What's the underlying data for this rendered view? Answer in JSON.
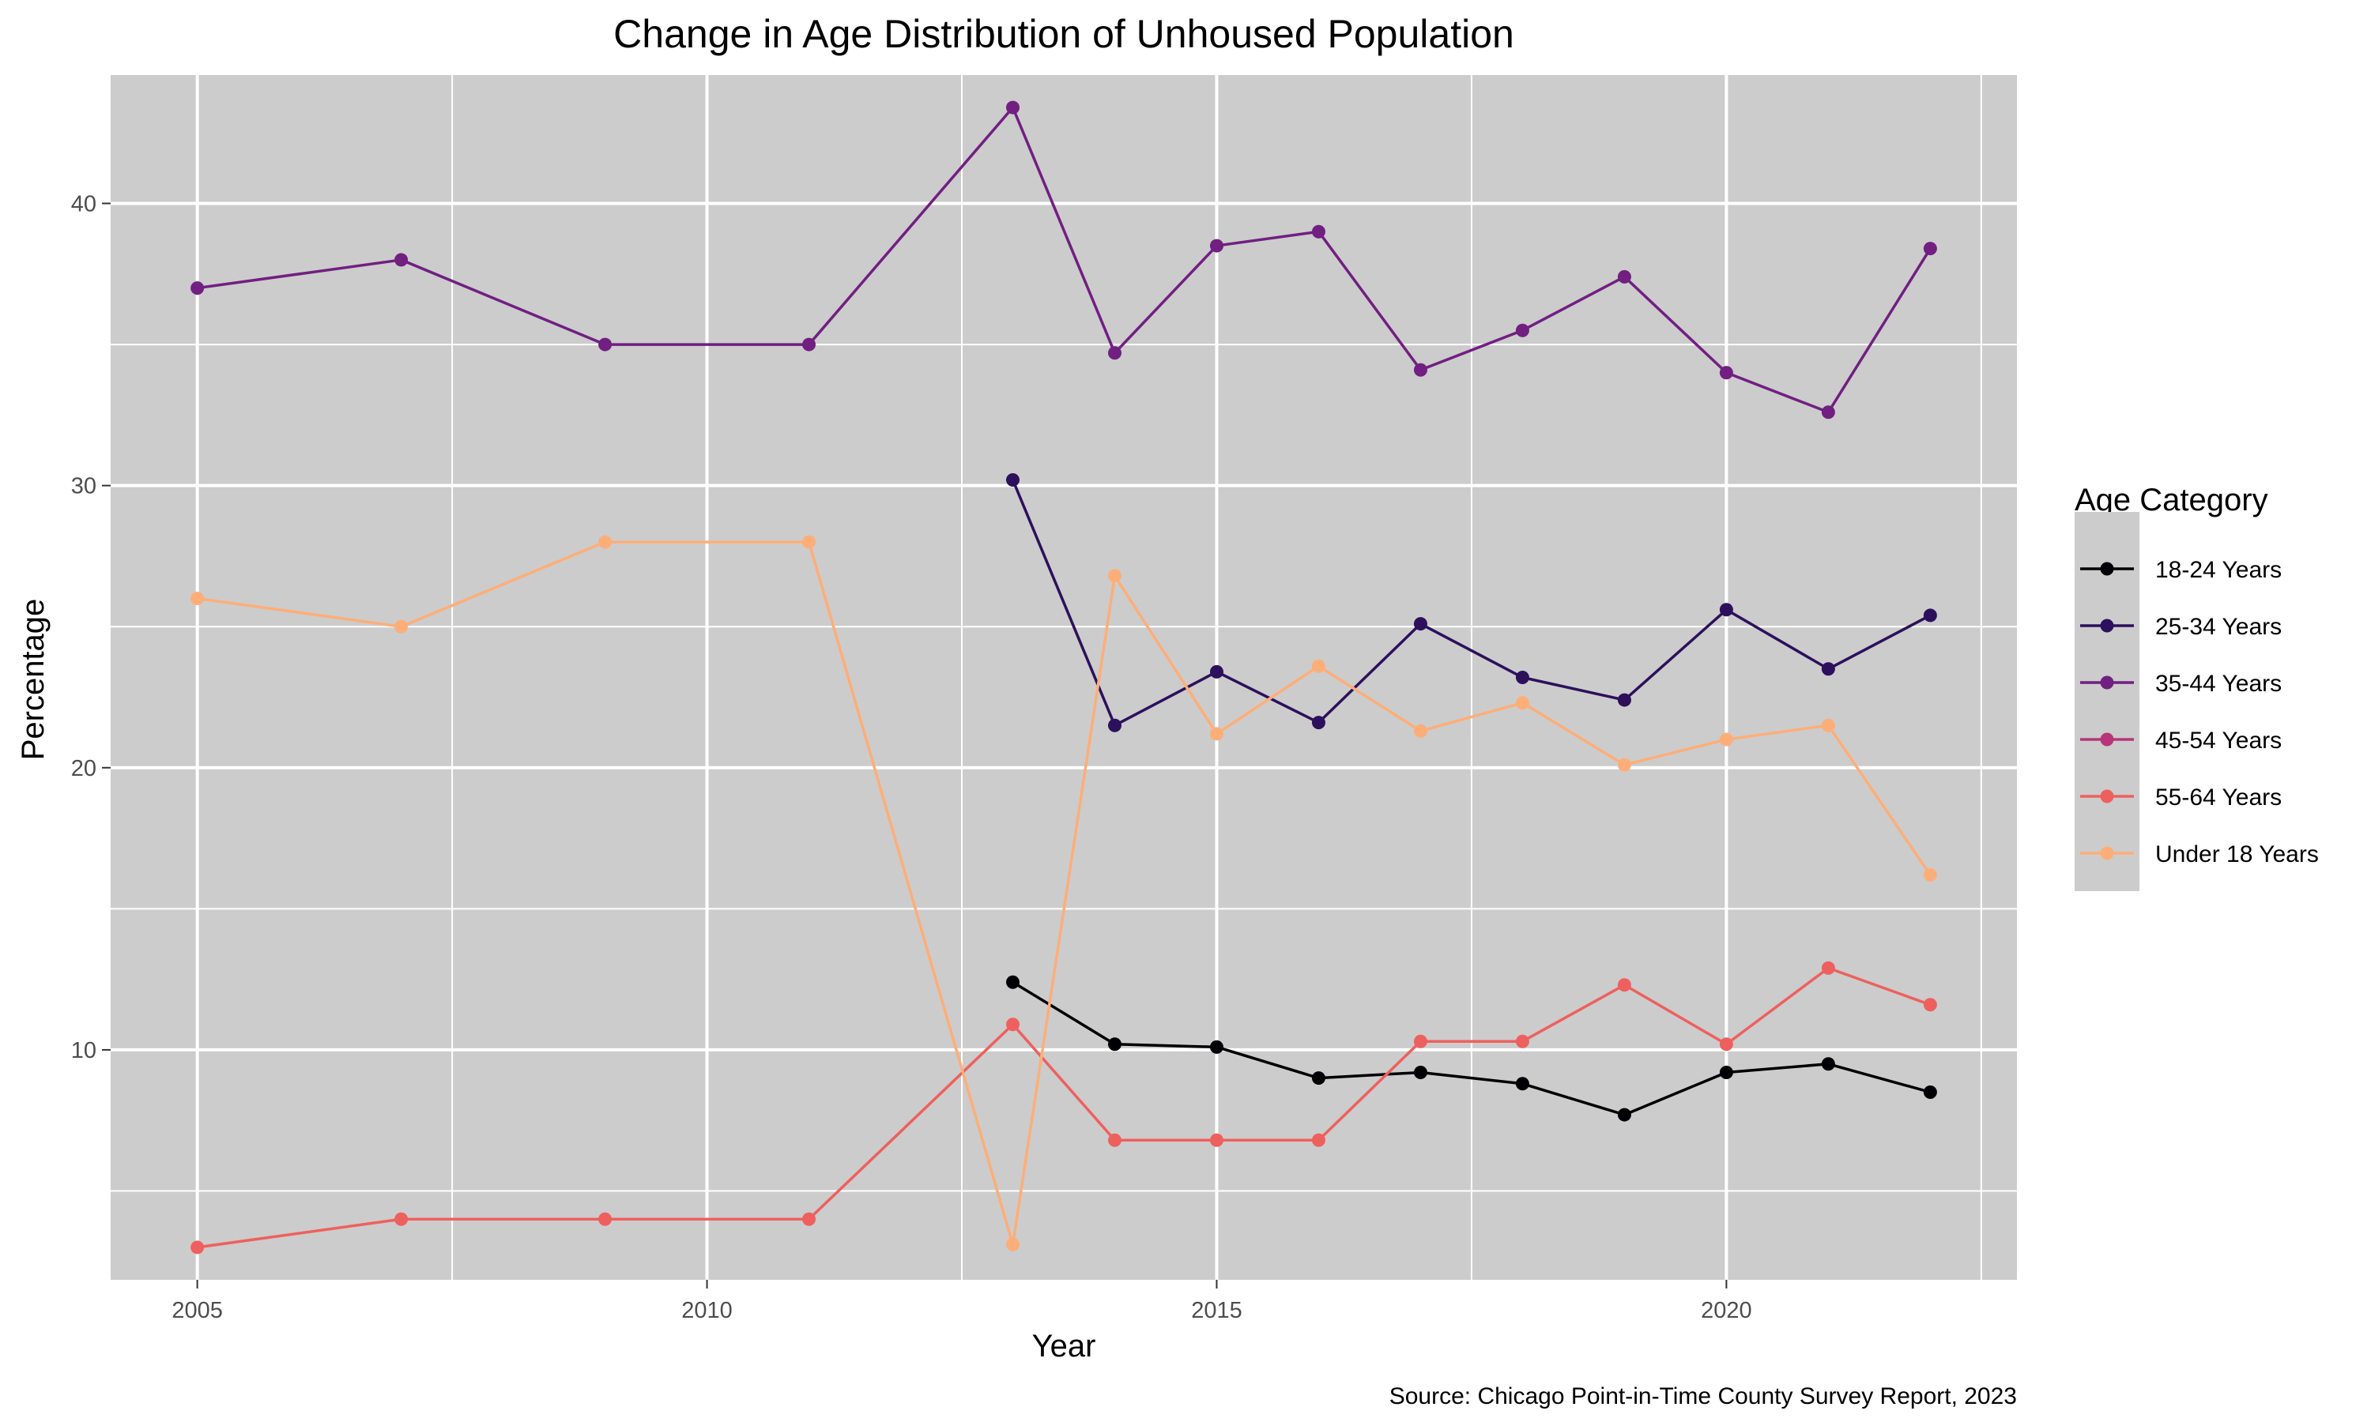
{
  "chart_data": {
    "type": "line",
    "title": "Change in Age Distribution of Unhoused Population",
    "xlabel": "Year",
    "ylabel": "Percentage",
    "caption": "Source: Chicago Point-in-Time County Survey Report, 2023",
    "xlim": [
      2004.15,
      2022.85
    ],
    "ylim": [
      1.85,
      44.55
    ],
    "x_ticks": [
      2005,
      2010,
      2015,
      2020
    ],
    "x_tick_labels": [
      "2005",
      "2010",
      "2015",
      "2020"
    ],
    "x_minor_ticks": [
      2007.5,
      2012.5,
      2017.5,
      2022.5
    ],
    "y_ticks": [
      10,
      20,
      30,
      40
    ],
    "y_tick_labels": [
      "10",
      "20",
      "30",
      "40"
    ],
    "y_minor_ticks": [
      5,
      15,
      25,
      35
    ],
    "grid": true,
    "panel_background": "#cccccc",
    "legend": {
      "title": "Age Category",
      "position": "right"
    },
    "series": [
      {
        "name": "18-24 Years",
        "color": "#000004",
        "x": [
          2013,
          2014,
          2015,
          2016,
          2017,
          2018,
          2019,
          2020,
          2021,
          2022
        ],
        "y": [
          12.4,
          10.2,
          10.1,
          9.0,
          9.2,
          8.8,
          7.7,
          9.2,
          9.5,
          8.5
        ]
      },
      {
        "name": "25-34 Years",
        "color": "#2c105c",
        "x": [
          2013,
          2014,
          2015,
          2016,
          2017,
          2018,
          2019,
          2020,
          2021,
          2022
        ],
        "y": [
          30.2,
          21.5,
          23.4,
          21.6,
          25.1,
          23.2,
          22.4,
          25.6,
          23.5,
          25.4
        ]
      },
      {
        "name": "35-44 Years",
        "color": "#711f81",
        "x": [
          2005,
          2007,
          2009,
          2011,
          2013,
          2014,
          2015,
          2016,
          2017,
          2018,
          2019,
          2020,
          2021,
          2022
        ],
        "y": [
          37.0,
          38.0,
          35.0,
          35.0,
          43.4,
          34.7,
          38.5,
          39.0,
          34.1,
          35.5,
          37.4,
          34.0,
          32.6,
          38.4
        ]
      },
      {
        "name": "45-54 Years",
        "color": "#b63679",
        "x": [],
        "y": []
      },
      {
        "name": "55-64 Years",
        "color": "#ee605e",
        "x": [
          2005,
          2007,
          2009,
          2011,
          2013,
          2014,
          2015,
          2016,
          2017,
          2018,
          2019,
          2020,
          2021,
          2022
        ],
        "y": [
          3.0,
          4.0,
          4.0,
          4.0,
          10.9,
          6.8,
          6.8,
          6.8,
          10.3,
          10.3,
          12.3,
          10.2,
          12.9,
          11.6
        ]
      },
      {
        "name": "Under 18 Years",
        "color": "#fdae78",
        "x": [
          2005,
          2007,
          2009,
          2011,
          2013,
          2014,
          2015,
          2016,
          2017,
          2018,
          2019,
          2020,
          2021,
          2022
        ],
        "y": [
          26.0,
          25.0,
          28.0,
          28.0,
          3.1,
          26.8,
          21.2,
          23.6,
          21.3,
          22.3,
          20.1,
          21.0,
          21.5,
          16.2
        ]
      }
    ]
  }
}
